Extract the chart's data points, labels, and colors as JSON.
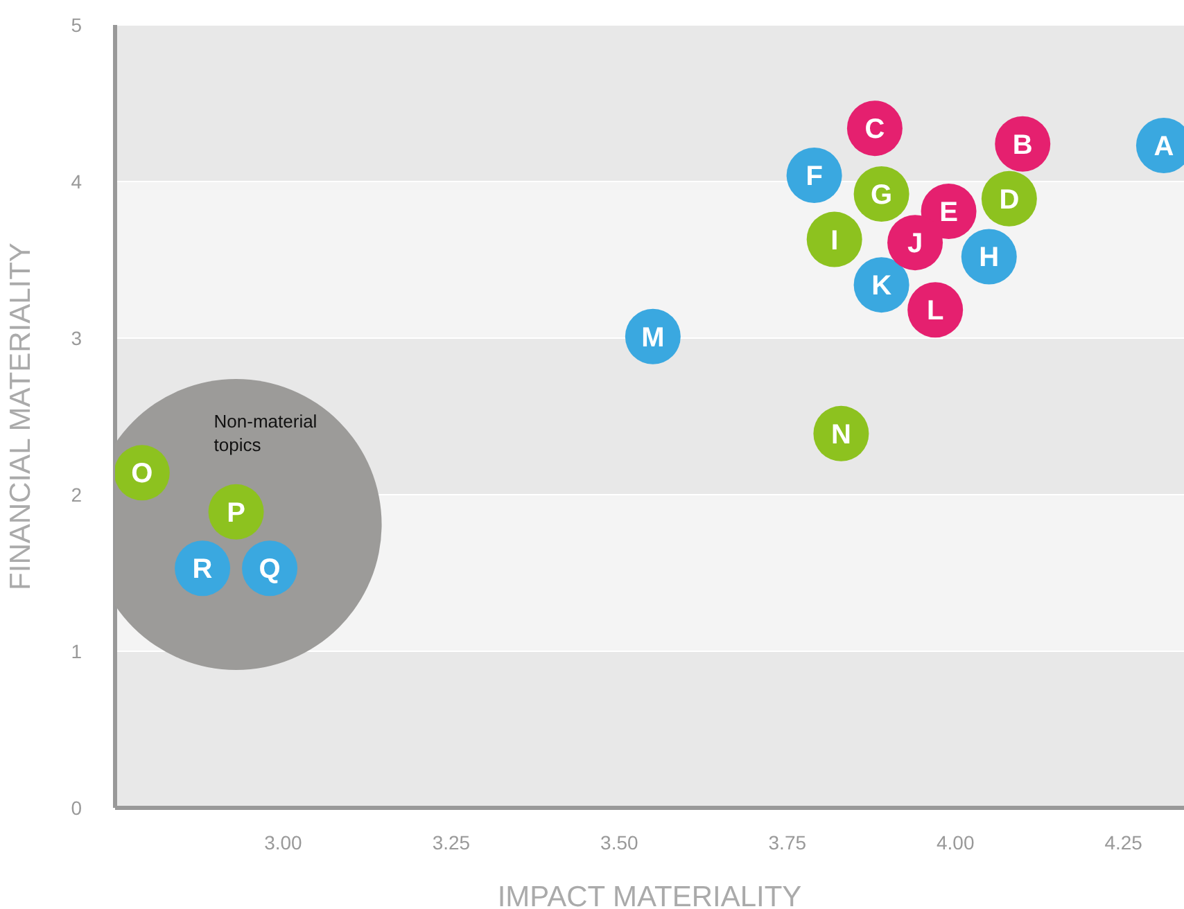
{
  "chart_data": {
    "type": "scatter",
    "xlabel": "IMPACT MATERIALITY",
    "ylabel": "FINANCIAL MATERIALITY",
    "xlim": [
      2.75,
      4.34
    ],
    "xticks": [
      {
        "value": 3,
        "label": "3.00"
      },
      {
        "value": 3.25,
        "label": "3.25"
      },
      {
        "value": 3.5,
        "label": "3.50"
      },
      {
        "value": 3.75,
        "label": "3.75"
      },
      {
        "value": 4,
        "label": "4.00"
      },
      {
        "value": 4.25,
        "label": "4.25"
      }
    ],
    "ylim": [
      0,
      5
    ],
    "yticks": [
      0,
      1,
      2,
      3,
      4,
      5
    ],
    "grid": "y",
    "legend": false,
    "marker": "circle",
    "series": [
      {
        "type": "bubble",
        "name": "Non-material topics",
        "color": "#9c9b99",
        "x": [
          2.93
        ],
        "values": [
          1.81
        ],
        "sizes": [
          1
        ]
      },
      {
        "color": "#3aa8e0",
        "x": [
          4.31,
          3.79,
          4.05,
          3.89,
          3.55,
          2.98,
          2.88
        ],
        "values": [
          4.23,
          4.04,
          3.52,
          3.34,
          3.01,
          1.53,
          1.53
        ],
        "value_labels": [
          "A",
          "F",
          "H",
          "K",
          "M",
          "Q",
          "R"
        ]
      },
      {
        "color": "#e5206f",
        "x": [
          4.1,
          3.88,
          3.99,
          3.94,
          3.97
        ],
        "values": [
          4.24,
          4.34,
          3.81,
          3.61,
          3.18
        ],
        "value_labels": [
          "B",
          "C",
          "E",
          "J",
          "L"
        ]
      },
      {
        "color": "#8dc21f",
        "x": [
          4.08,
          3.89,
          3.82,
          3.83,
          2.79,
          2.93
        ],
        "values": [
          3.89,
          3.92,
          3.63,
          2.39,
          2.14,
          1.89
        ],
        "value_labels": [
          "D",
          "G",
          "I",
          "N",
          "O",
          "P"
        ]
      }
    ]
  }
}
